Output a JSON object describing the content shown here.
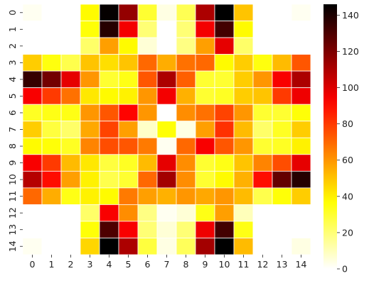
{
  "chart_data": {
    "type": "heatmap",
    "colormap": "hot_r",
    "cell_border_color": "#ffffff",
    "x_categories": [
      "0",
      "1",
      "2",
      "3",
      "4",
      "5",
      "6",
      "7",
      "8",
      "9",
      "10",
      "11",
      "12",
      "13",
      "14"
    ],
    "y_categories": [
      "0",
      "1",
      "2",
      "3",
      "4",
      "5",
      "6",
      "7",
      "8",
      "9",
      "10",
      "11",
      "12",
      "13",
      "14"
    ],
    "colorbar": {
      "range": [
        0,
        146
      ],
      "ticks": [
        0,
        20,
        40,
        60,
        80,
        100,
        120,
        140
      ]
    },
    "values": [
      [
        2,
        0,
        0,
        38,
        145,
        115,
        30,
        4,
        25,
        110,
        146,
        50,
        0,
        0,
        2
      ],
      [
        0,
        0,
        0,
        36,
        138,
        95,
        20,
        0,
        20,
        95,
        132,
        38,
        0,
        0,
        0
      ],
      [
        0,
        0,
        0,
        22,
        58,
        38,
        6,
        0,
        18,
        58,
        98,
        22,
        0,
        0,
        0
      ],
      [
        48,
        35,
        26,
        50,
        44,
        50,
        70,
        55,
        68,
        70,
        38,
        48,
        35,
        52,
        74
      ],
      [
        135,
        122,
        98,
        60,
        30,
        34,
        74,
        110,
        72,
        30,
        30,
        48,
        60,
        94,
        110
      ],
      [
        94,
        80,
        68,
        42,
        38,
        40,
        60,
        95,
        54,
        30,
        32,
        48,
        50,
        80,
        96
      ],
      [
        32,
        34,
        34,
        60,
        74,
        92,
        60,
        0,
        62,
        68,
        78,
        60,
        30,
        30,
        36
      ],
      [
        48,
        28,
        22,
        56,
        78,
        58,
        8,
        36,
        4,
        58,
        82,
        52,
        22,
        32,
        48
      ],
      [
        38,
        36,
        32,
        64,
        76,
        74,
        66,
        2,
        70,
        94,
        74,
        60,
        30,
        32,
        40
      ],
      [
        94,
        80,
        52,
        42,
        28,
        32,
        52,
        98,
        62,
        30,
        34,
        50,
        64,
        76,
        98
      ],
      [
        108,
        90,
        58,
        40,
        26,
        30,
        70,
        112,
        62,
        30,
        38,
        54,
        90,
        125,
        138
      ],
      [
        70,
        55,
        34,
        40,
        38,
        66,
        58,
        54,
        60,
        56,
        60,
        52,
        26,
        36,
        48
      ],
      [
        0,
        0,
        0,
        22,
        94,
        62,
        18,
        2,
        6,
        34,
        58,
        10,
        0,
        0,
        0
      ],
      [
        0,
        0,
        0,
        36,
        130,
        94,
        20,
        6,
        20,
        96,
        132,
        34,
        0,
        0,
        0
      ],
      [
        2,
        0,
        0,
        46,
        146,
        110,
        28,
        4,
        24,
        112,
        146,
        52,
        0,
        0,
        4
      ]
    ]
  }
}
